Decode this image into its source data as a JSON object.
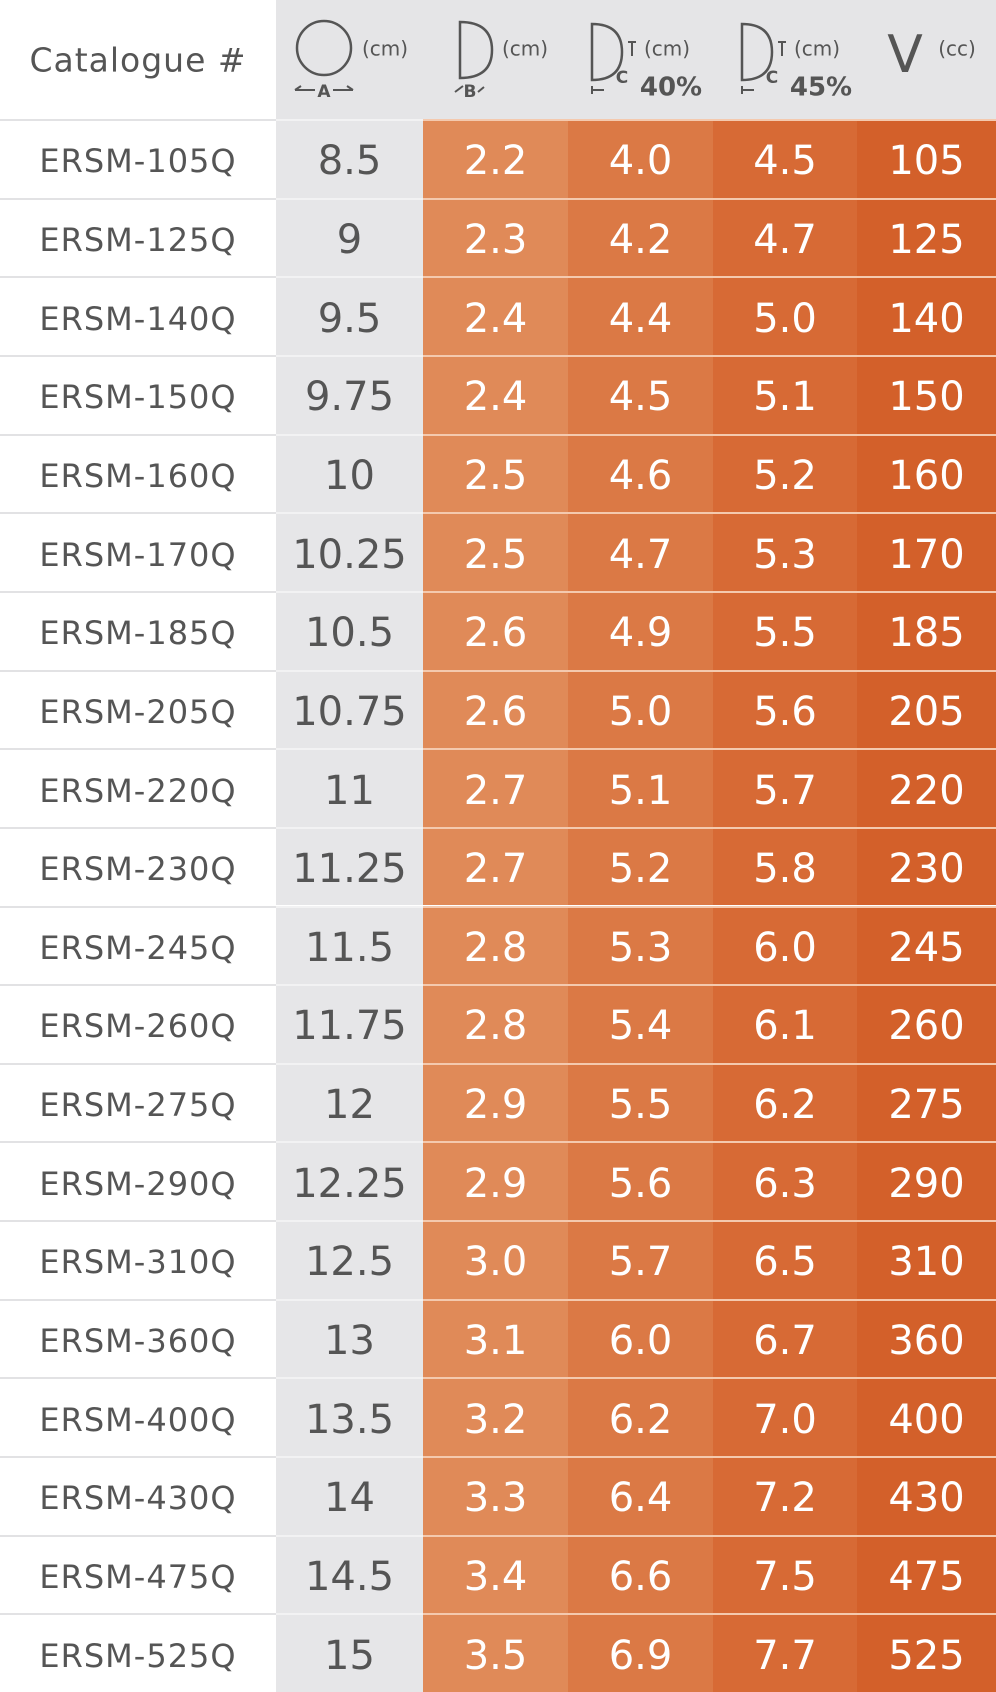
{
  "header": {
    "catalogue": "Catalogue #",
    "columns": [
      {
        "unit": "(cm)",
        "label": "A"
      },
      {
        "unit": "(cm)",
        "label": "B"
      },
      {
        "unit": "(cm)",
        "label": "C",
        "percent": "40%"
      },
      {
        "unit": "(cm)",
        "label": "C",
        "percent": "45%"
      },
      {
        "symbol": "V",
        "unit": "(cc)"
      }
    ]
  },
  "table": {
    "rows": [
      [
        "ERSM-105Q",
        "8.5",
        "2.2",
        "4.0",
        "4.5",
        "105"
      ],
      [
        "ERSM-125Q",
        "9",
        "2.3",
        "4.2",
        "4.7",
        "125"
      ],
      [
        "ERSM-140Q",
        "9.5",
        "2.4",
        "4.4",
        "5.0",
        "140"
      ],
      [
        "ERSM-150Q",
        "9.75",
        "2.4",
        "4.5",
        "5.1",
        "150"
      ],
      [
        "ERSM-160Q",
        "10",
        "2.5",
        "4.6",
        "5.2",
        "160"
      ],
      [
        "ERSM-170Q",
        "10.25",
        "2.5",
        "4.7",
        "5.3",
        "170"
      ],
      [
        "ERSM-185Q",
        "10.5",
        "2.6",
        "4.9",
        "5.5",
        "185"
      ],
      [
        "ERSM-205Q",
        "10.75",
        "2.6",
        "5.0",
        "5.6",
        "205"
      ],
      [
        "ERSM-220Q",
        "11",
        "2.7",
        "5.1",
        "5.7",
        "220"
      ],
      [
        "ERSM-230Q",
        "11.25",
        "2.7",
        "5.2",
        "5.8",
        "230"
      ],
      [
        "ERSM-245Q",
        "11.5",
        "2.8",
        "5.3",
        "6.0",
        "245"
      ],
      [
        "ERSM-260Q",
        "11.75",
        "2.8",
        "5.4",
        "6.1",
        "260"
      ],
      [
        "ERSM-275Q",
        "12",
        "2.9",
        "5.5",
        "6.2",
        "275"
      ],
      [
        "ERSM-290Q",
        "12.25",
        "2.9",
        "5.6",
        "6.3",
        "290"
      ],
      [
        "ERSM-310Q",
        "12.5",
        "3.0",
        "5.7",
        "6.5",
        "310"
      ],
      [
        "ERSM-360Q",
        "13",
        "3.1",
        "6.0",
        "6.7",
        "360"
      ],
      [
        "ERSM-400Q",
        "13.5",
        "3.2",
        "6.2",
        "7.0",
        "400"
      ],
      [
        "ERSM-430Q",
        "14",
        "3.3",
        "6.4",
        "7.2",
        "430"
      ],
      [
        "ERSM-475Q",
        "14.5",
        "3.4",
        "6.6",
        "7.5",
        "475"
      ],
      [
        "ERSM-525Q",
        "15",
        "3.5",
        "6.9",
        "7.7",
        "525"
      ]
    ]
  }
}
